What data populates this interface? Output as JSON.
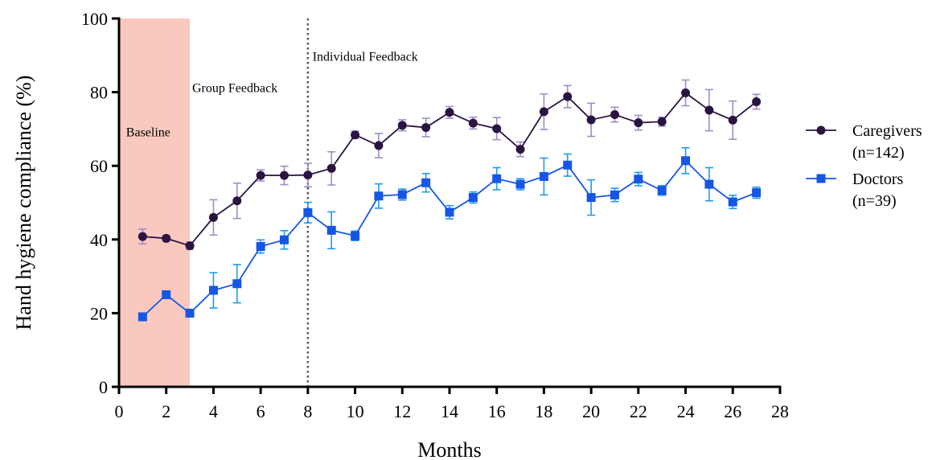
{
  "chart_data": {
    "type": "line",
    "xlabel": "Months",
    "ylabel": "Hand hygiene compliance (%)",
    "xlim": [
      0,
      28
    ],
    "ylim": [
      0,
      100
    ],
    "x_ticks": [
      0,
      2,
      4,
      6,
      8,
      10,
      12,
      14,
      16,
      18,
      20,
      22,
      24,
      26,
      28
    ],
    "y_ticks": [
      0,
      20,
      40,
      60,
      80,
      100
    ],
    "grid": false,
    "legend_position": "right",
    "shaded_region": {
      "x_start": 0,
      "x_end": 3,
      "color": "#f9c9bf"
    },
    "vertical_line": {
      "x": 8,
      "style": "dotted",
      "color": "#555555"
    },
    "annotations": [
      {
        "text": "Baseline",
        "x": 0.3,
        "y": 68
      },
      {
        "text": "Group Feedback",
        "x": 3.1,
        "y": 80
      },
      {
        "text": "Individual Feedback",
        "x": 8.2,
        "y": 88.5
      }
    ],
    "series": [
      {
        "name": "Caregivers",
        "legend_lines": [
          "Caregivers",
          "(n=142)"
        ],
        "color": "#2b1442",
        "error_color": "#a08cc7",
        "marker": "circle",
        "x": [
          1,
          2,
          3,
          4,
          5,
          6,
          7,
          8,
          9,
          10,
          11,
          12,
          13,
          14,
          15,
          16,
          17,
          18,
          19,
          20,
          21,
          22,
          23,
          24,
          25,
          26,
          27
        ],
        "values": [
          40.8,
          40.3,
          38.3,
          46.0,
          50.5,
          57.4,
          57.4,
          57.5,
          59.3,
          68.4,
          65.5,
          71.0,
          70.4,
          74.5,
          71.6,
          70.1,
          64.5,
          74.7,
          78.8,
          72.5,
          73.9,
          71.7,
          72.0,
          79.8,
          75.1,
          72.4,
          77.4
        ],
        "errors": [
          2.0,
          0.8,
          1.0,
          4.8,
          4.8,
          1.5,
          2.5,
          3.2,
          4.5,
          1.0,
          3.3,
          1.5,
          2.5,
          1.6,
          1.6,
          3.0,
          2.0,
          4.8,
          3.0,
          4.5,
          2.0,
          2.0,
          1.2,
          3.5,
          5.6,
          5.2,
          2.0
        ]
      },
      {
        "name": "Doctors",
        "legend_lines": [
          "Doctors",
          "(n=39)"
        ],
        "color": "#1656e4",
        "error_color": "#1c9cee",
        "marker": "square",
        "x": [
          1,
          2,
          3,
          4,
          5,
          6,
          7,
          8,
          9,
          10,
          11,
          12,
          13,
          14,
          15,
          16,
          17,
          18,
          19,
          20,
          21,
          22,
          23,
          24,
          25,
          26,
          27
        ],
        "values": [
          19.0,
          25.0,
          20.0,
          26.2,
          28.0,
          38.1,
          39.9,
          47.3,
          42.5,
          41.0,
          51.8,
          52.2,
          55.4,
          47.4,
          51.4,
          56.5,
          55.0,
          57.1,
          60.2,
          51.4,
          52.1,
          56.4,
          53.3,
          61.4,
          55.0,
          50.2,
          52.7
        ],
        "errors": [
          0.8,
          0.8,
          0.8,
          4.8,
          5.2,
          1.8,
          2.5,
          2.8,
          5.0,
          1.3,
          3.3,
          1.5,
          2.5,
          1.8,
          1.5,
          3.0,
          1.5,
          5.0,
          3.0,
          4.8,
          1.8,
          1.8,
          1.3,
          3.5,
          4.5,
          1.8,
          1.5
        ]
      }
    ]
  }
}
